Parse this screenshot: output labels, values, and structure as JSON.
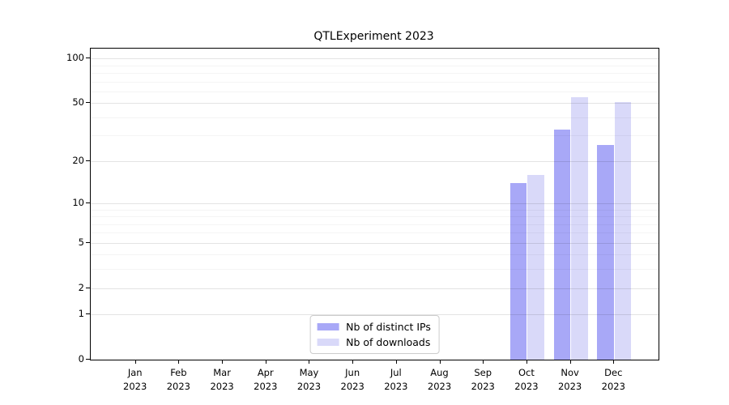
{
  "chart_data": {
    "type": "bar",
    "title": "QTLExperiment 2023",
    "categories": [
      "Jan",
      "Feb",
      "Mar",
      "Apr",
      "May",
      "Jun",
      "Jul",
      "Aug",
      "Sep",
      "Oct",
      "Nov",
      "Dec"
    ],
    "category_year": "2023",
    "series": [
      {
        "name": "Nb of distinct IPs",
        "color": "#a8a8f7",
        "values": [
          0,
          0,
          0,
          0,
          0,
          0,
          0,
          0,
          0,
          14,
          33,
          26
        ]
      },
      {
        "name": "Nb of downloads",
        "color": "#d9d9f9",
        "values": [
          0,
          0,
          0,
          0,
          0,
          0,
          0,
          0,
          0,
          16,
          55,
          51
        ]
      }
    ],
    "y_axis": {
      "scale": "log1p",
      "ticks": [
        0,
        1,
        2,
        5,
        10,
        20,
        50,
        100
      ],
      "minor_ticks": [
        3,
        4,
        6,
        7,
        8,
        9,
        30,
        40,
        60,
        70,
        80,
        90
      ],
      "ylim": [
        0,
        115
      ]
    },
    "x_axis": {
      "tick_count": 12
    },
    "grid": "horizontal",
    "legend_position": "bottom-center",
    "colors": {
      "axis": "#000000",
      "background": "#ffffff"
    }
  }
}
